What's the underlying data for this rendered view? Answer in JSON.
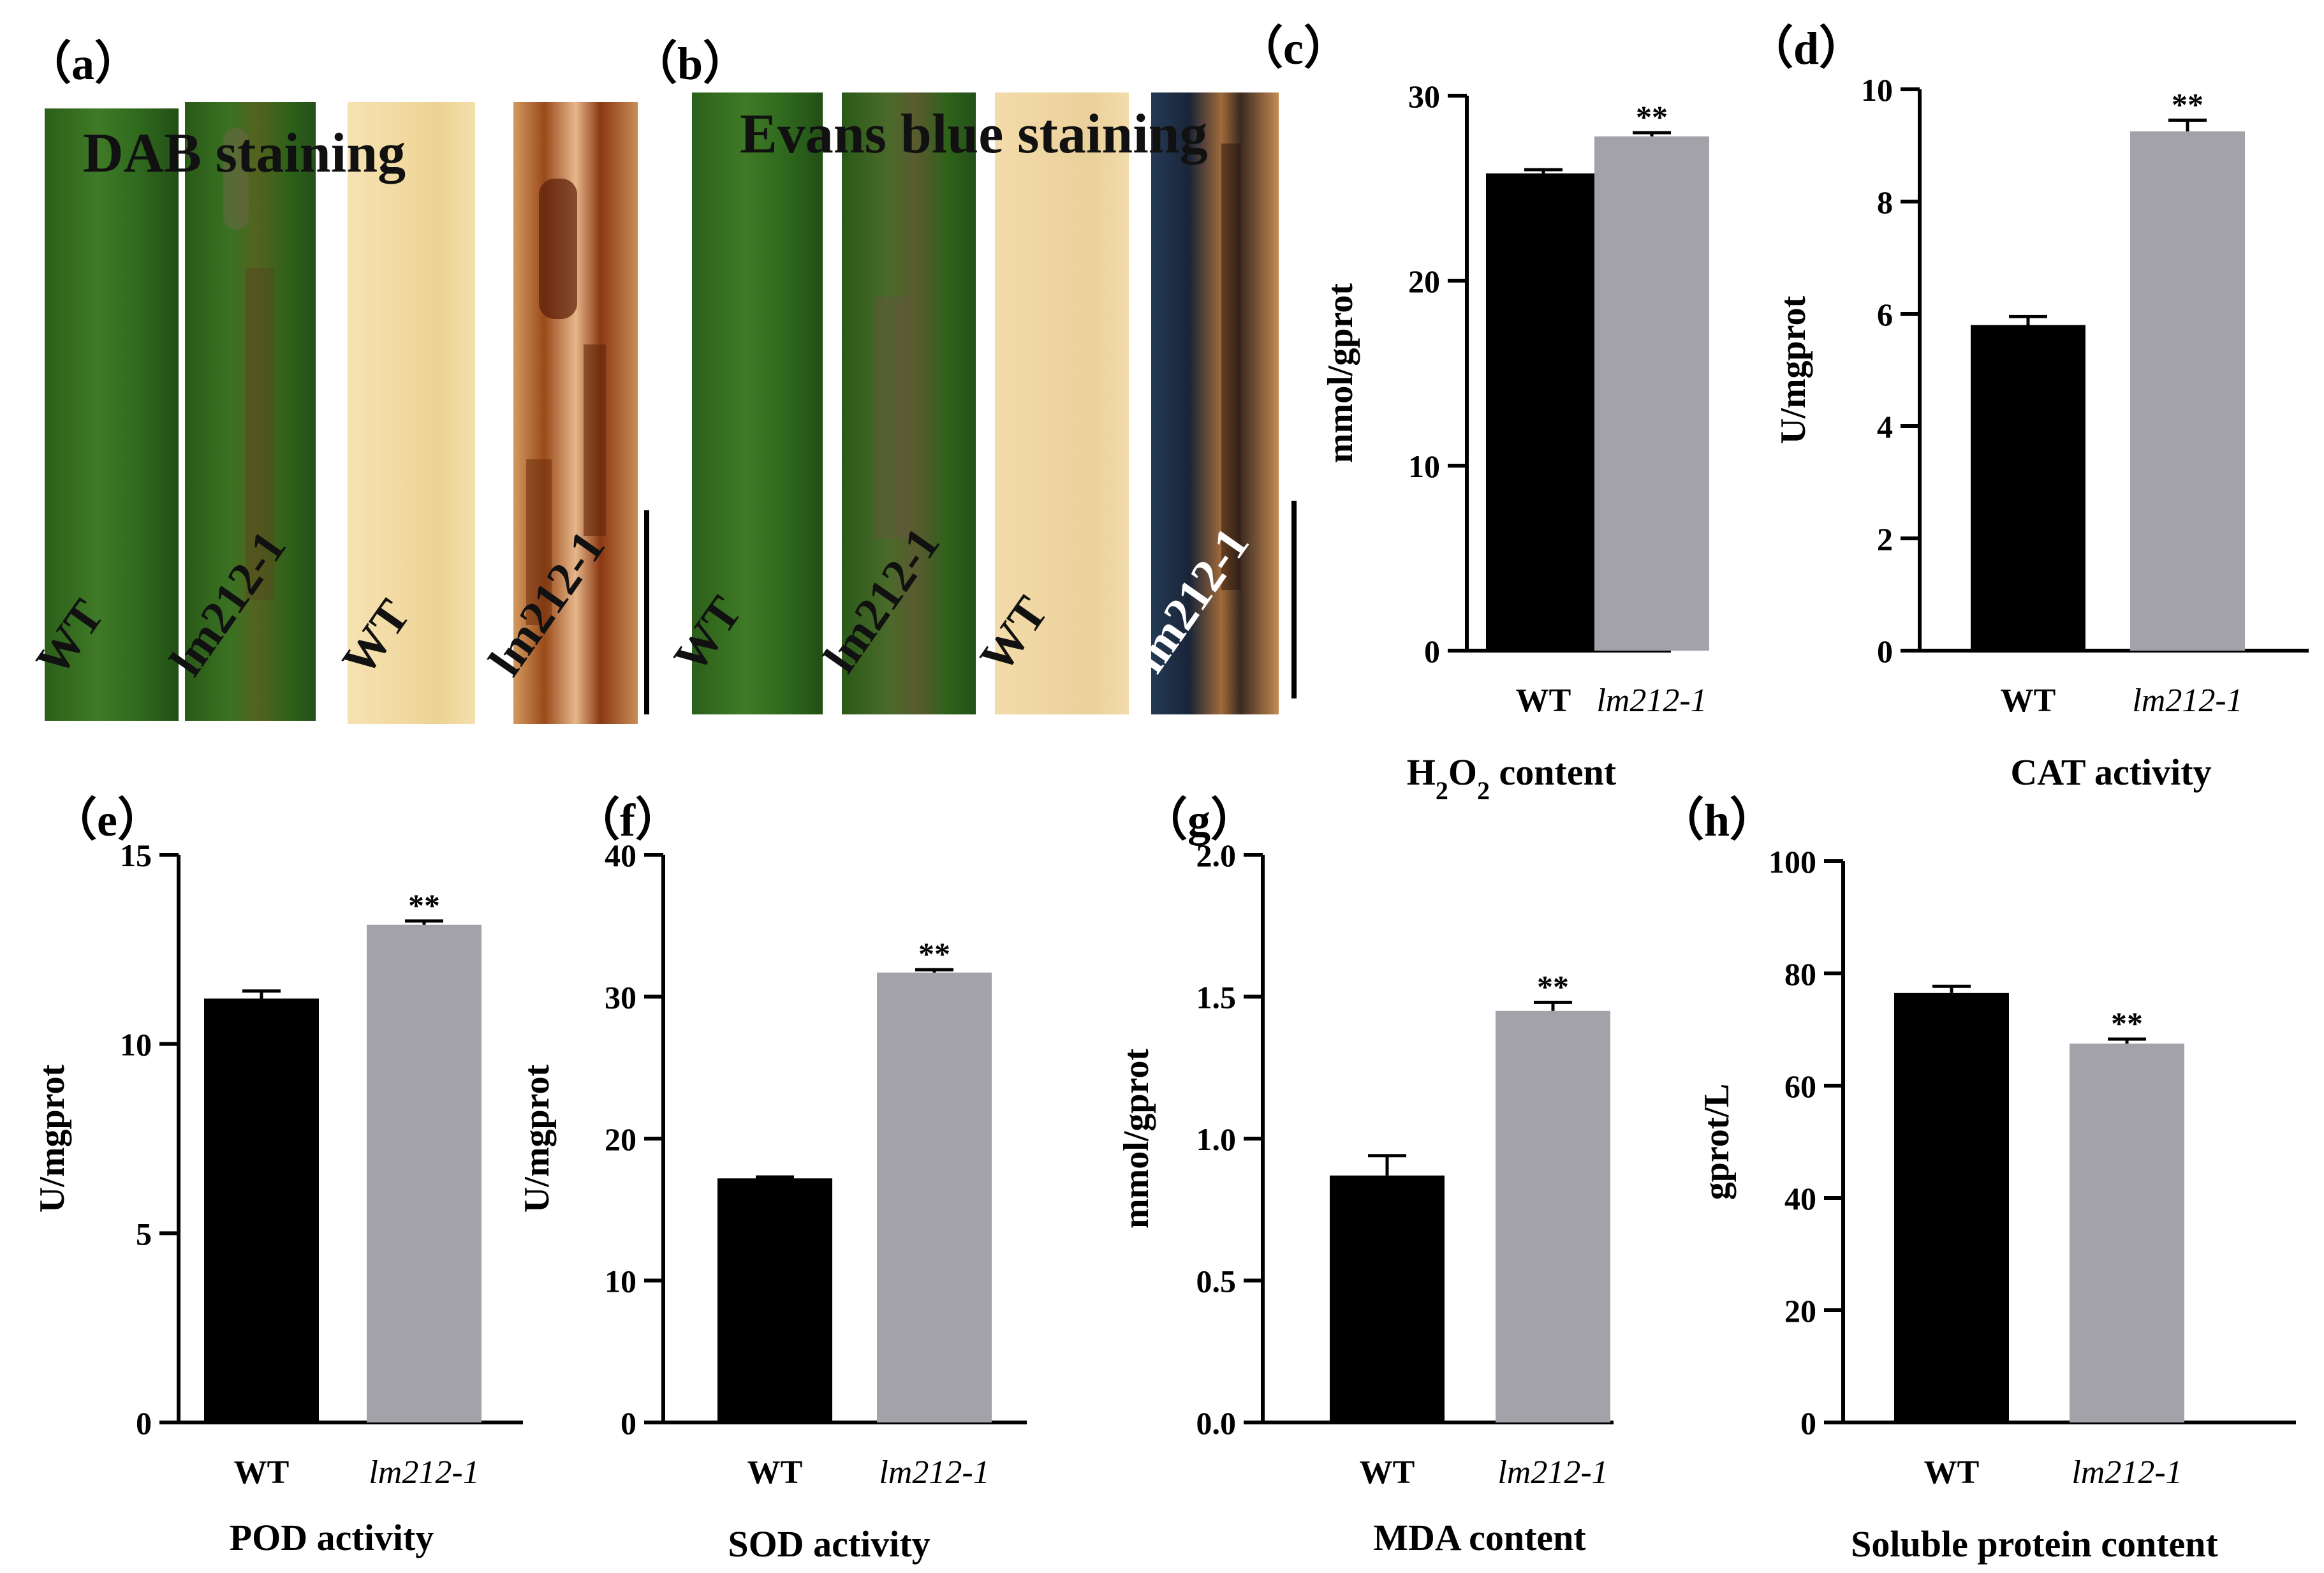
{
  "figure": {
    "panels": {
      "a": {
        "label": "（a）",
        "title": "DAB staining",
        "leaves": [
          "WT",
          "lm212-1",
          "WT",
          "lm212-1"
        ]
      },
      "b": {
        "label": "（b）",
        "title": "Evans blue staining",
        "leaves": [
          "WT",
          "lm212-1",
          "WT",
          "lm212-1"
        ]
      }
    },
    "colors": {
      "wt_bar": "#000000",
      "mutant_bar": "#a3a2a8",
      "leaf_green": "#2f6a1e",
      "leaf_yellow": "#f1dca6",
      "dab_brown": "#7a3210",
      "evans_blue": "#1c2a4a"
    }
  },
  "chart_data": [
    {
      "id": "c",
      "panel_label": "（c）",
      "type": "bar",
      "categories": [
        "WT",
        "lm212-1"
      ],
      "values": [
        25.8,
        27.8
      ],
      "errors": [
        0.2,
        0.2
      ],
      "significance": [
        "",
        "**"
      ],
      "ylabel": "mmol/gprot",
      "xlabel_parts": [
        "H",
        "2",
        "O",
        "2",
        " content"
      ],
      "ylim": [
        0,
        30
      ],
      "yticks": [
        0,
        10,
        20,
        30
      ],
      "ytick_labels": [
        "0",
        "10",
        "20",
        "30"
      ]
    },
    {
      "id": "d",
      "panel_label": "（d）",
      "type": "bar",
      "categories": [
        "WT",
        "lm212-1"
      ],
      "values": [
        5.8,
        9.25
      ],
      "errors": [
        0.15,
        0.2
      ],
      "significance": [
        "",
        "**"
      ],
      "ylabel": "U/mgprot",
      "xlabel": "CAT activity",
      "ylim": [
        0,
        10
      ],
      "yticks": [
        0,
        2,
        4,
        6,
        8,
        10
      ],
      "ytick_labels": [
        "0",
        "2",
        "4",
        "6",
        "8",
        "10"
      ]
    },
    {
      "id": "e",
      "panel_label": "（e）",
      "type": "bar",
      "categories": [
        "WT",
        "lm212-1"
      ],
      "values": [
        11.2,
        13.15
      ],
      "errors": [
        0.2,
        0.1
      ],
      "significance": [
        "",
        "**"
      ],
      "ylabel": "U/mgprot",
      "xlabel": "POD activity",
      "ylim": [
        0,
        15
      ],
      "yticks": [
        0,
        5,
        10,
        15
      ],
      "ytick_labels": [
        "0",
        "5",
        "10",
        "15"
      ]
    },
    {
      "id": "f",
      "panel_label": "（f）",
      "type": "bar",
      "categories": [
        "WT",
        "lm212-1"
      ],
      "values": [
        17.2,
        31.7
      ],
      "errors": [
        0.1,
        0.2
      ],
      "significance": [
        "",
        "**"
      ],
      "ylabel": "U/mgprot",
      "xlabel": "SOD activity",
      "ylim": [
        0,
        40
      ],
      "yticks": [
        0,
        10,
        20,
        30,
        40
      ],
      "ytick_labels": [
        "0",
        "10",
        "20",
        "30",
        "40"
      ]
    },
    {
      "id": "g",
      "panel_label": "（g）",
      "type": "bar",
      "categories": [
        "WT",
        "lm212-1"
      ],
      "values": [
        0.87,
        1.45
      ],
      "errors": [
        0.07,
        0.03
      ],
      "significance": [
        "",
        "**"
      ],
      "ylabel": "mmol/gprot",
      "xlabel": "MDA content",
      "ylim": [
        0,
        2
      ],
      "yticks": [
        0,
        0.5,
        1,
        1.5,
        2
      ],
      "ytick_labels": [
        "0.0",
        "0.5",
        "1.0",
        "1.5",
        "2.0"
      ]
    },
    {
      "id": "h",
      "panel_label": "（h）",
      "type": "bar",
      "categories": [
        "WT",
        "lm212-1"
      ],
      "values": [
        76.5,
        67.5
      ],
      "errors": [
        1.2,
        0.8
      ],
      "significance": [
        "",
        "**"
      ],
      "ylabel": "gprot/L",
      "xlabel": "Soluble protein content",
      "ylim": [
        0,
        100
      ],
      "yticks": [
        0,
        20,
        40,
        60,
        80,
        100
      ],
      "ytick_labels": [
        "0",
        "20",
        "40",
        "60",
        "80",
        "100"
      ]
    }
  ]
}
